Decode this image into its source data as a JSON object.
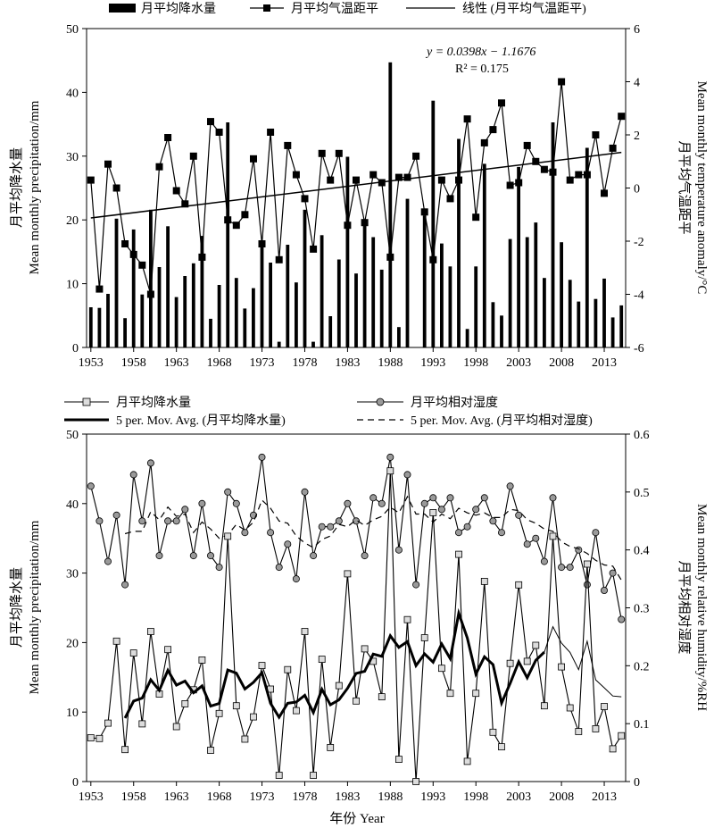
{
  "chart_data": [
    {
      "type": "bar+line",
      "title": "",
      "legend": {
        "placement": "top",
        "entries": [
          "月平均降水量",
          "月平均气温距平",
          "线性 (月平均气温距平)"
        ]
      },
      "xlabel": "",
      "ylabel_left": [
        "月平均降水量",
        "Mean monthly precipitation/mm"
      ],
      "ylabel_right": [
        "月平均气温距平",
        "Mean monthly temperature anomaly/°C"
      ],
      "x_tick_labels": [
        "1953",
        "1958",
        "1963",
        "1968",
        "1973",
        "1978",
        "1983",
        "1988",
        "1993",
        "1998",
        "2003",
        "2008",
        "2013"
      ],
      "y_left_ticks": [
        "0",
        "10",
        "20",
        "30",
        "40",
        "50"
      ],
      "y_right_ticks": [
        "-6",
        "-4",
        "-2",
        "0",
        "2",
        "4",
        "6"
      ],
      "ylim_left": [
        0,
        50
      ],
      "ylim_right": [
        -6,
        6
      ],
      "grid": false,
      "years": [
        1953,
        1954,
        1955,
        1956,
        1957,
        1958,
        1959,
        1960,
        1961,
        1962,
        1963,
        1964,
        1965,
        1966,
        1967,
        1968,
        1969,
        1970,
        1971,
        1972,
        1973,
        1974,
        1975,
        1976,
        1977,
        1978,
        1979,
        1980,
        1981,
        1982,
        1983,
        1984,
        1985,
        1986,
        1987,
        1988,
        1989,
        1990,
        1991,
        1992,
        1993,
        1994,
        1995,
        1996,
        1997,
        1998,
        1999,
        2000,
        2001,
        2002,
        2003,
        2004,
        2005,
        2006,
        2007,
        2008,
        2009,
        2010,
        2011,
        2012,
        2013,
        2014,
        2015
      ],
      "series": [
        {
          "name": "月平均降水量",
          "kind": "bar",
          "axis": "left",
          "color": "#000000",
          "values": [
            6.3,
            6.2,
            8.4,
            20.2,
            4.6,
            18.5,
            8.3,
            21.6,
            12.6,
            19,
            7.9,
            11.2,
            13.2,
            17.5,
            4.5,
            9.8,
            35.3,
            10.9,
            6.1,
            9.3,
            16.7,
            13.3,
            0.9,
            16.1,
            10.2,
            21.6,
            0.9,
            17.6,
            4.9,
            13.8,
            29.9,
            11.6,
            19.1,
            17.3,
            12.2,
            44.7,
            3.2,
            23.3,
            0,
            20.7,
            38.7,
            16.3,
            12.7,
            32.7,
            2.9,
            12.7,
            28.8,
            7.1,
            5,
            17,
            28.3,
            17.3,
            19.6,
            10.9,
            35.3,
            16.5,
            10.6,
            7.2,
            31.3,
            7.6,
            10.8,
            4.7,
            6.6
          ]
        },
        {
          "name": "月平均气温距平",
          "kind": "line",
          "marker": "filled-square",
          "axis": "right",
          "color": "#000000",
          "values": [
            0.3,
            -3.8,
            0.9,
            0,
            -2.1,
            -2.5,
            -2.9,
            -4,
            0.8,
            1.9,
            -0.1,
            -0.6,
            1.2,
            -2.6,
            2.5,
            2.1,
            -1.2,
            -1.4,
            -1,
            1.1,
            -2.1,
            2.1,
            -2.7,
            1.6,
            0.5,
            -0.4,
            -2.3,
            1.3,
            0.3,
            1.3,
            -1.4,
            0.3,
            -1.3,
            0.5,
            0.2,
            -2.6,
            0.4,
            0.4,
            1.2,
            -0.9,
            -2.7,
            0.3,
            -0.4,
            0.3,
            2.6,
            -1.1,
            1.7,
            2.2,
            3.2,
            0.1,
            0.2,
            1.6,
            1.0,
            0.7,
            0.6,
            4.0,
            0.3,
            0.5,
            0.5,
            2,
            -0.2,
            1.5,
            2.7
          ]
        },
        {
          "name": "线性 (月平均气温距平)",
          "kind": "trendline",
          "axis": "right",
          "color": "#000000",
          "equation_x_index": true,
          "slope": 0.0398,
          "intercept": -1.1676
        }
      ],
      "annotations": {
        "equation": "y = 0.0398x − 1.1676",
        "r2": "R² = 0.175"
      }
    },
    {
      "type": "line",
      "title": "",
      "legend": {
        "placement": "top",
        "entries": [
          "月平均降水量",
          "月平均相对湿度",
          "5 per. Mov. Avg. (月平均降水量)",
          "5 per. Mov. Avg. (月平均相对湿度)"
        ]
      },
      "xlabel": "年份 Year",
      "ylabel_left": [
        "月平均降水量",
        "Mean monthly precipitation/mm"
      ],
      "ylabel_right": [
        "月平均相对湿度",
        "Mean monthly relative humidity/%RH"
      ],
      "x_tick_labels": [
        "1953",
        "1958",
        "1963",
        "1968",
        "1973",
        "1978",
        "1983",
        "1988",
        "1993",
        "1998",
        "2003",
        "2008",
        "2013"
      ],
      "y_left_ticks": [
        "0",
        "10",
        "20",
        "30",
        "40",
        "50"
      ],
      "y_right_ticks": [
        "0",
        "0.1",
        "0.2",
        "0.3",
        "0.4",
        "0.5",
        "0.6"
      ],
      "ylim_left": [
        0,
        50
      ],
      "ylim_right": [
        0,
        0.6
      ],
      "grid": false,
      "years": [
        1953,
        1954,
        1955,
        1956,
        1957,
        1958,
        1959,
        1960,
        1961,
        1962,
        1963,
        1964,
        1965,
        1966,
        1967,
        1968,
        1969,
        1970,
        1971,
        1972,
        1973,
        1974,
        1975,
        1976,
        1977,
        1978,
        1979,
        1980,
        1981,
        1982,
        1983,
        1984,
        1985,
        1986,
        1987,
        1988,
        1989,
        1990,
        1991,
        1992,
        1993,
        1994,
        1995,
        1996,
        1997,
        1998,
        1999,
        2000,
        2001,
        2002,
        2003,
        2004,
        2005,
        2006,
        2007,
        2008,
        2009,
        2010,
        2011,
        2012,
        2013,
        2014,
        2015
      ],
      "series": [
        {
          "name": "月平均降水量",
          "kind": "line",
          "marker": "open-square",
          "axis": "left",
          "color": "#000000",
          "values": [
            6.3,
            6.2,
            8.4,
            20.2,
            4.6,
            18.5,
            8.3,
            21.6,
            12.6,
            19,
            7.9,
            11.2,
            13.2,
            17.5,
            4.5,
            9.8,
            35.3,
            10.9,
            6.1,
            9.3,
            16.7,
            13.3,
            0.9,
            16.1,
            10.2,
            21.6,
            0.9,
            17.6,
            4.9,
            13.8,
            29.9,
            11.6,
            19.1,
            17.3,
            12.2,
            44.7,
            3.2,
            23.3,
            0,
            20.7,
            38.7,
            16.3,
            12.7,
            32.7,
            2.9,
            12.7,
            28.8,
            7.1,
            5,
            17,
            28.3,
            17.3,
            19.6,
            10.9,
            35.3,
            16.5,
            10.6,
            7.2,
            31.3,
            7.6,
            10.8,
            4.7,
            6.6
          ]
        },
        {
          "name": "月平均相对湿度",
          "kind": "line",
          "marker": "grey-circle",
          "axis": "right",
          "color": "#000000",
          "values": [
            0.51,
            0.45,
            0.38,
            0.46,
            0.34,
            0.53,
            0.45,
            0.55,
            0.39,
            0.45,
            0.45,
            0.47,
            0.39,
            0.48,
            0.39,
            0.37,
            0.5,
            0.48,
            0.43,
            0.46,
            0.56,
            0.43,
            0.37,
            0.41,
            0.35,
            0.5,
            0.39,
            0.44,
            0.44,
            0.45,
            0.48,
            0.45,
            0.39,
            0.49,
            0.48,
            0.56,
            0.4,
            0.53,
            0.34,
            0.48,
            0.49,
            0.47,
            0.49,
            0.43,
            0.44,
            0.47,
            0.49,
            0.45,
            0.43,
            0.51,
            0.46,
            0.41,
            0.42,
            0.38,
            0.49,
            0.37,
            0.37,
            0.4,
            0.34,
            0.43,
            0.33,
            0.36,
            0.28
          ]
        },
        {
          "name": "5 per. Mov. Avg. (月平均降水量)",
          "kind": "moving-average",
          "period": 5,
          "source": 0,
          "axis": "left",
          "style": "thick-solid",
          "color": "#000000"
        },
        {
          "name": "5 per. Mov. Avg. (月平均相对湿度)",
          "kind": "moving-average",
          "period": 5,
          "source": 1,
          "axis": "right",
          "style": "dashed",
          "color": "#000000"
        }
      ]
    }
  ]
}
